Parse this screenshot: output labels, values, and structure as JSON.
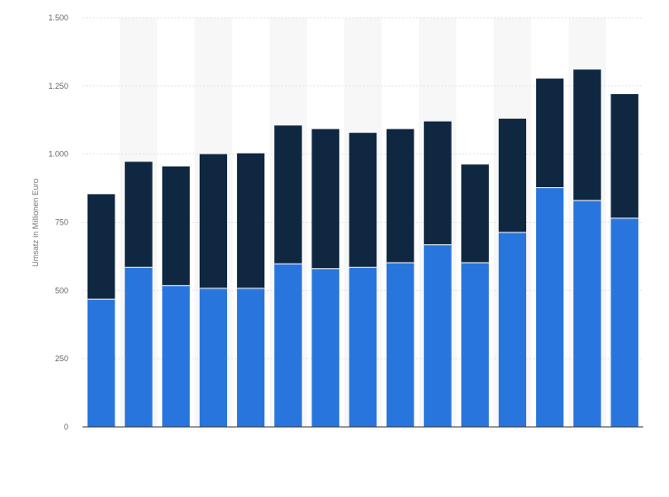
{
  "chart_data": {
    "type": "bar",
    "stacked": true,
    "ylabel": "Umsatz in Millionen Euro",
    "ylim": [
      0,
      1500
    ],
    "y_ticks": [
      0,
      250,
      500,
      750,
      1000,
      1250,
      1500
    ],
    "y_tick_labels": [
      "0",
      "250",
      "500",
      "750",
      "1.000",
      "1.250",
      "1.500"
    ],
    "grid": true,
    "legend": "none",
    "categories_count": 15,
    "series": [
      {
        "color": "#2876dd",
        "values": [
          468,
          585,
          518,
          508,
          508,
          598,
          580,
          585,
          602,
          668,
          602,
          713,
          877,
          830,
          765
        ]
      },
      {
        "color": "#0f2740",
        "values": [
          385,
          387,
          437,
          492,
          495,
          507,
          512,
          493,
          490,
          452,
          360,
          417,
          400,
          480,
          455
        ]
      }
    ]
  }
}
